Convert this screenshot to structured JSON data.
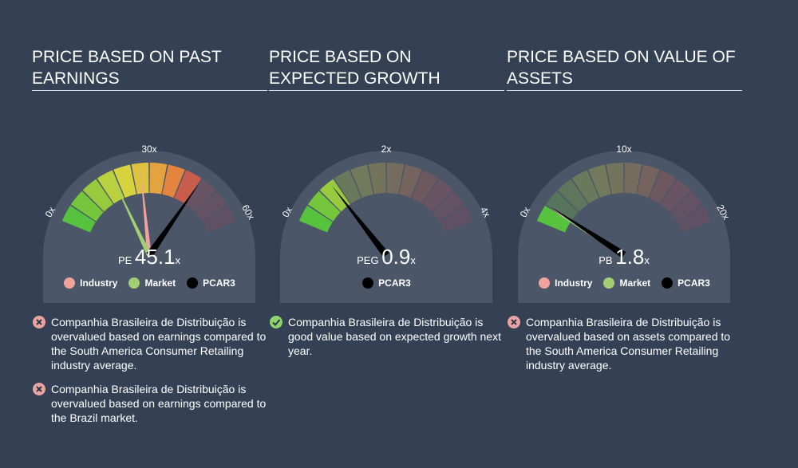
{
  "colors": {
    "background": "#344154",
    "gauge_body": "#4b5669",
    "industry": "#f0a29c",
    "market": "#a3cf73",
    "company": "#000000",
    "check": "#8fd46a",
    "cross": "#e9a3a0"
  },
  "panels": [
    {
      "title": "PRICE BASED ON PAST EARNINGS",
      "metric_label": "PE",
      "value_text": "45.1",
      "unit": "x",
      "scale": {
        "min": 0,
        "max": 60,
        "min_label": "0x",
        "mid_label": "30x",
        "max_label": "60x"
      },
      "value": 45.1,
      "highlight_to": 45.1,
      "markers": [
        {
          "name": "Industry",
          "value": 27.5,
          "color": "#f0a29c"
        },
        {
          "name": "Market",
          "value": 19.0,
          "color": "#a3cf73"
        }
      ],
      "legend": [
        {
          "label": "Industry",
          "color": "#f0a29c"
        },
        {
          "label": "Market",
          "color": "#a3cf73"
        },
        {
          "label": "PCAR3",
          "color": "#000000"
        }
      ],
      "notes": [
        {
          "status": "cross",
          "text": "Companhia Brasileira de Distribuição is overvalued based on earnings compared to the South America Consumer Retailing industry average."
        },
        {
          "status": "cross",
          "text": "Companhia Brasileira de Distribuição is overvalued based on earnings compared to the Brazil market."
        }
      ]
    },
    {
      "title": "PRICE BASED ON EXPECTED GROWTH",
      "metric_label": "PEG",
      "value_text": "0.9",
      "unit": "x",
      "scale": {
        "min": 0,
        "max": 4,
        "min_label": "0x",
        "mid_label": "2x",
        "max_label": "4x"
      },
      "value": 0.9,
      "highlight_to": 0.9,
      "markers": [],
      "legend": [
        {
          "label": "PCAR3",
          "color": "#000000"
        }
      ],
      "notes": [
        {
          "status": "check",
          "text": "Companhia Brasileira de Distribuição is good value based on expected growth next year."
        }
      ]
    },
    {
      "title": "PRICE BASED ON VALUE OF ASSETS",
      "metric_label": "PB",
      "value_text": "1.8",
      "unit": "x",
      "scale": {
        "min": 0,
        "max": 20,
        "min_label": "0x",
        "mid_label": "10x",
        "max_label": "20x"
      },
      "value": 1.8,
      "highlight_to": 1.8,
      "markers": [
        {
          "name": "Industry",
          "value": 1.7,
          "color": "#f0a29c"
        },
        {
          "name": "Market",
          "value": 1.6,
          "color": "#a3cf73"
        }
      ],
      "legend": [
        {
          "label": "Industry",
          "color": "#f0a29c"
        },
        {
          "label": "Market",
          "color": "#a3cf73"
        },
        {
          "label": "PCAR3",
          "color": "#000000"
        }
      ],
      "notes": [
        {
          "status": "cross",
          "text": "Companhia Brasileira de Distribuição is overvalued based on assets compared to the South America Consumer Retailing industry average."
        }
      ]
    }
  ],
  "chart_data": [
    {
      "type": "gauge",
      "title": "PRICE BASED ON PAST EARNINGS",
      "metric": "PE",
      "range": [
        0,
        60
      ],
      "company": "PCAR3",
      "value": 45.1,
      "industry": 27.5,
      "market": 19.0
    },
    {
      "type": "gauge",
      "title": "PRICE BASED ON EXPECTED GROWTH",
      "metric": "PEG",
      "range": [
        0,
        4
      ],
      "company": "PCAR3",
      "value": 0.9
    },
    {
      "type": "gauge",
      "title": "PRICE BASED ON VALUE OF ASSETS",
      "metric": "PB",
      "range": [
        0,
        20
      ],
      "company": "PCAR3",
      "value": 1.8,
      "industry": 1.7,
      "market": 1.6
    }
  ]
}
